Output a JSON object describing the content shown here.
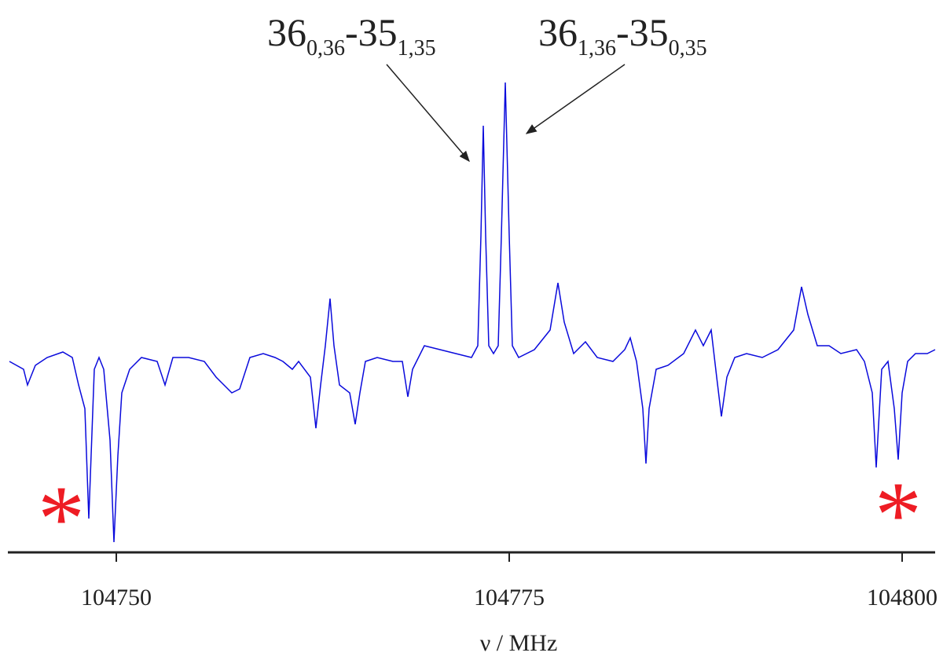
{
  "chart_data": {
    "type": "line",
    "xlabel": "ν / MHz",
    "xlim": [
      104743.1,
      104802.1
    ],
    "xticks": [
      104750,
      104775,
      104800
    ],
    "ylim": [
      -2.48,
      4
    ],
    "annotations": [
      {
        "parts": [
          "36",
          "0,36",
          "-35",
          "1,35"
        ]
      },
      {
        "parts": [
          "36",
          "1,36",
          "-35",
          "0,35"
        ]
      }
    ],
    "symbols": [
      "*",
      "*"
    ],
    "symbol_color": "#ee1c24",
    "x": [
      104743.2,
      104744.1,
      104744.35,
      104744.85,
      104745.6,
      104746.6,
      104747.2,
      104747.6,
      104748.0,
      104748.25,
      104748.6,
      104748.9,
      104749.2,
      104749.6,
      104749.85,
      104750.1,
      104750.35,
      104750.85,
      104751.6,
      104752.6,
      104753.1,
      104753.6,
      104754.6,
      104755.6,
      104756.35,
      104756.85,
      104757.35,
      104757.85,
      104758.5,
      104759.35,
      104760.1,
      104760.6,
      104761.2,
      104761.6,
      104762.35,
      104762.7,
      104763.0,
      104763.3,
      104763.6,
      104763.85,
      104764.2,
      104764.85,
      104765.2,
      104765.5,
      104765.85,
      104766.6,
      104767.6,
      104768.2,
      104768.55,
      104768.85,
      104769.6,
      104770.6,
      104771.6,
      104772.6,
      104773.0,
      104773.2,
      104773.35,
      104773.5,
      104773.7,
      104774.0,
      104774.3,
      104774.5,
      104774.75,
      104775.0,
      104775.2,
      104775.6,
      104776.6,
      104777.6,
      104778.1,
      104778.5,
      104779.1,
      104779.85,
      104780.6,
      104781.6,
      104782.35,
      104782.7,
      104783.1,
      104783.5,
      104783.7,
      104783.9,
      104784.35,
      104785.1,
      104786.1,
      104786.85,
      104787.35,
      104787.85,
      104788.2,
      104788.5,
      104788.85,
      104789.35,
      104790.1,
      104791.1,
      104792.1,
      104793.1,
      104793.6,
      104794.0,
      104794.6,
      104795.35,
      104796.1,
      104797.1,
      104797.6,
      104798.1,
      104798.35,
      104798.7,
      104799.1,
      104799.5,
      104799.75,
      104800.0,
      104800.35,
      104800.85,
      104801.6,
      104802.1
    ],
    "series": [
      {
        "color": "#0a0adc",
        "values": [
          -0.05,
          -0.15,
          -0.35,
          -0.1,
          0,
          0.07,
          0,
          -0.35,
          -0.65,
          -2.05,
          -0.15,
          0,
          -0.15,
          -1.05,
          -2.35,
          -1.25,
          -0.45,
          -0.15,
          0,
          -0.05,
          -0.35,
          0,
          0,
          -0.05,
          -0.25,
          -0.35,
          -0.45,
          -0.4,
          0,
          0.05,
          0,
          -0.05,
          -0.15,
          -0.05,
          -0.25,
          -0.9,
          -0.35,
          0.15,
          0.75,
          0.15,
          -0.35,
          -0.45,
          -0.85,
          -0.45,
          -0.05,
          0,
          -0.05,
          -0.05,
          -0.5,
          -0.15,
          0.15,
          0.1,
          0.05,
          0,
          0.15,
          1.55,
          2.95,
          1.55,
          0.15,
          0.05,
          0.15,
          1.55,
          3.5,
          1.55,
          0.15,
          0,
          0.1,
          0.35,
          0.95,
          0.45,
          0.05,
          0.2,
          0,
          -0.05,
          0.1,
          0.25,
          -0.05,
          -0.65,
          -1.35,
          -0.65,
          -0.15,
          -0.1,
          0.05,
          0.35,
          0.15,
          0.35,
          -0.25,
          -0.75,
          -0.25,
          0,
          0.05,
          0,
          0.1,
          0.35,
          0.9,
          0.55,
          0.15,
          0.15,
          0.05,
          0.1,
          -0.05,
          -0.45,
          -1.4,
          -0.15,
          -0.05,
          -0.65,
          -1.3,
          -0.45,
          -0.05,
          0.05,
          0.05,
          0.1
        ]
      }
    ]
  }
}
